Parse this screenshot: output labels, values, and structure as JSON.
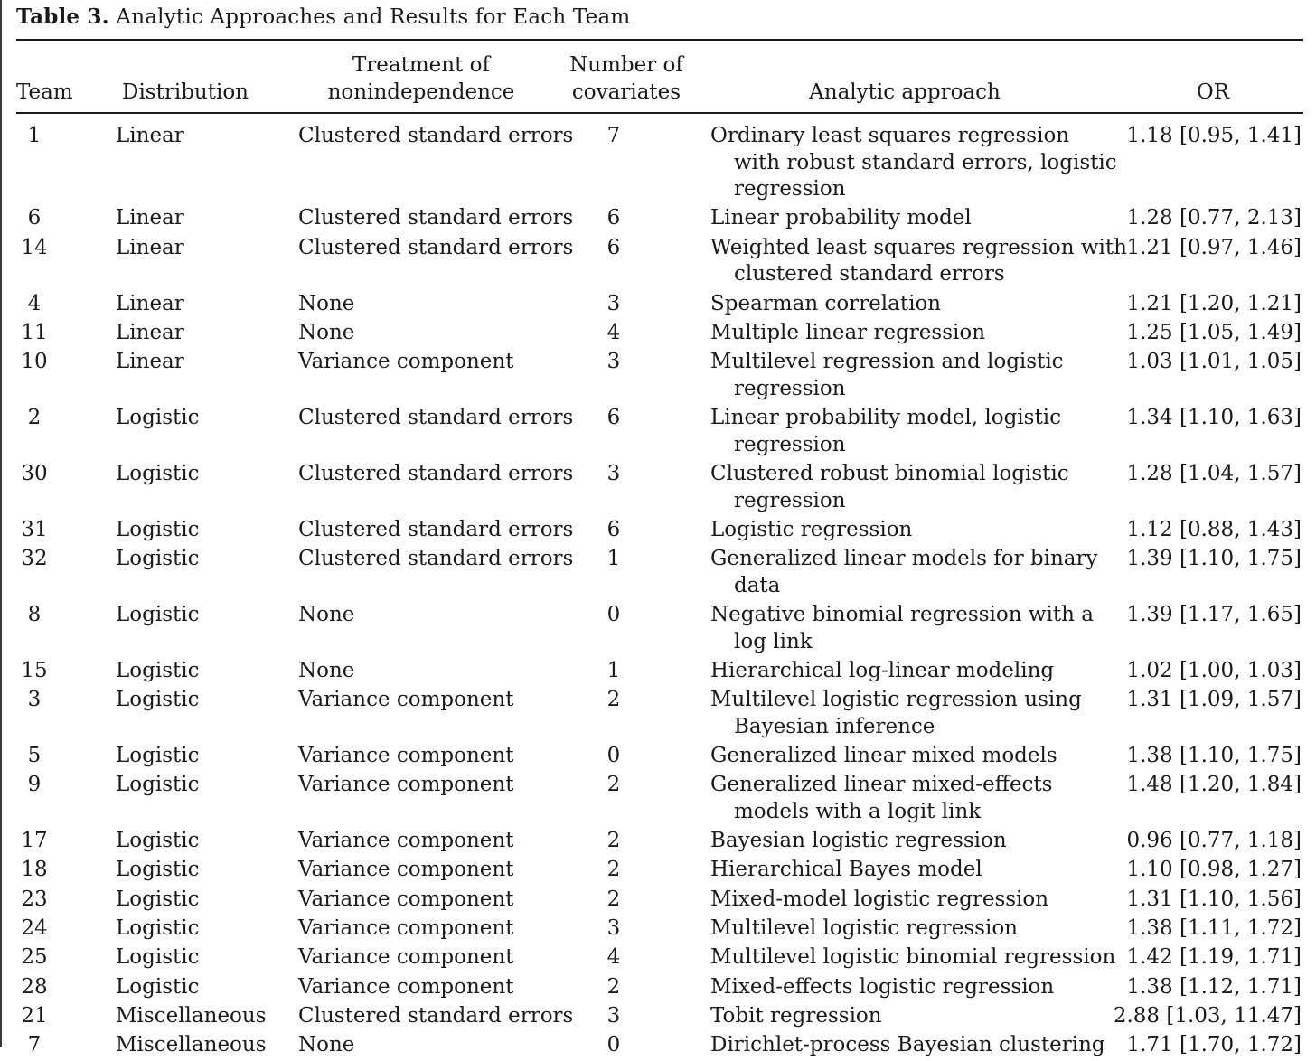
{
  "caption": {
    "label": "Table 3.",
    "title": "Analytic Approaches and Results for Each Team"
  },
  "columns": {
    "team": [
      "Team"
    ],
    "distribution": [
      "Distribution"
    ],
    "treatment": [
      "Treatment of",
      "nonindependence"
    ],
    "covariates": [
      "Number of",
      "covariates"
    ],
    "approach": [
      "Analytic approach"
    ],
    "or": [
      "OR"
    ]
  },
  "rows": [
    {
      "team": "1",
      "distribution": "Linear",
      "treatment": "Clustered standard errors",
      "covariates": "7",
      "approach": [
        "Ordinary least squares regression",
        "with robust standard errors, logistic",
        "regression"
      ],
      "or": "1.18 [0.95, 1.41]"
    },
    {
      "team": "6",
      "distribution": "Linear",
      "treatment": "Clustered standard errors",
      "covariates": "6",
      "approach": [
        "Linear probability model"
      ],
      "or": "1.28 [0.77, 2.13]"
    },
    {
      "team": "14",
      "distribution": "Linear",
      "treatment": "Clustered standard errors",
      "covariates": "6",
      "approach": [
        "Weighted least squares regression with",
        "clustered standard errors"
      ],
      "or": "1.21 [0.97, 1.46]"
    },
    {
      "team": "4",
      "distribution": "Linear",
      "treatment": "None",
      "covariates": "3",
      "approach": [
        "Spearman correlation"
      ],
      "or": "1.21 [1.20, 1.21]"
    },
    {
      "team": "11",
      "distribution": "Linear",
      "treatment": "None",
      "covariates": "4",
      "approach": [
        "Multiple linear regression"
      ],
      "or": "1.25 [1.05, 1.49]"
    },
    {
      "team": "10",
      "distribution": "Linear",
      "treatment": "Variance component",
      "covariates": "3",
      "approach": [
        "Multilevel regression and logistic",
        "regression"
      ],
      "or": "1.03 [1.01, 1.05]"
    },
    {
      "team": "2",
      "distribution": "Logistic",
      "treatment": "Clustered standard errors",
      "covariates": "6",
      "approach": [
        "Linear probability model, logistic",
        "regression"
      ],
      "or": "1.34 [1.10, 1.63]"
    },
    {
      "team": "30",
      "distribution": "Logistic",
      "treatment": "Clustered standard errors",
      "covariates": "3",
      "approach": [
        "Clustered robust binomial logistic",
        "regression"
      ],
      "or": "1.28 [1.04, 1.57]"
    },
    {
      "team": "31",
      "distribution": "Logistic",
      "treatment": "Clustered standard errors",
      "covariates": "6",
      "approach": [
        "Logistic regression"
      ],
      "or": "1.12 [0.88, 1.43]"
    },
    {
      "team": "32",
      "distribution": "Logistic",
      "treatment": "Clustered standard errors",
      "covariates": "1",
      "approach": [
        "Generalized linear models for binary",
        "data"
      ],
      "or": "1.39 [1.10, 1.75]"
    },
    {
      "team": "8",
      "distribution": "Logistic",
      "treatment": "None",
      "covariates": "0",
      "approach": [
        "Negative binomial regression with a",
        "log link"
      ],
      "or": "1.39 [1.17, 1.65]"
    },
    {
      "team": "15",
      "distribution": "Logistic",
      "treatment": "None",
      "covariates": "1",
      "approach": [
        "Hierarchical log-linear modeling"
      ],
      "or": "1.02 [1.00, 1.03]"
    },
    {
      "team": "3",
      "distribution": "Logistic",
      "treatment": "Variance component",
      "covariates": "2",
      "approach": [
        "Multilevel logistic regression using",
        "Bayesian inference"
      ],
      "or": "1.31 [1.09, 1.57]"
    },
    {
      "team": "5",
      "distribution": "Logistic",
      "treatment": "Variance component",
      "covariates": "0",
      "approach": [
        "Generalized linear mixed models"
      ],
      "or": "1.38 [1.10, 1.75]"
    },
    {
      "team": "9",
      "distribution": "Logistic",
      "treatment": "Variance component",
      "covariates": "2",
      "approach": [
        "Generalized linear mixed-effects",
        "models with a logit link"
      ],
      "or": "1.48 [1.20, 1.84]"
    },
    {
      "team": "17",
      "distribution": "Logistic",
      "treatment": "Variance component",
      "covariates": "2",
      "approach": [
        "Bayesian logistic regression"
      ],
      "or": "0.96 [0.77, 1.18]"
    },
    {
      "team": "18",
      "distribution": "Logistic",
      "treatment": "Variance component",
      "covariates": "2",
      "approach": [
        "Hierarchical Bayes model"
      ],
      "or": "1.10 [0.98, 1.27]"
    },
    {
      "team": "23",
      "distribution": "Logistic",
      "treatment": "Variance component",
      "covariates": "2",
      "approach": [
        "Mixed-model logistic regression"
      ],
      "or": "1.31 [1.10, 1.56]"
    },
    {
      "team": "24",
      "distribution": "Logistic",
      "treatment": "Variance component",
      "covariates": "3",
      "approach": [
        "Multilevel logistic regression"
      ],
      "or": "1.38 [1.11, 1.72]"
    },
    {
      "team": "25",
      "distribution": "Logistic",
      "treatment": "Variance component",
      "covariates": "4",
      "approach": [
        "Multilevel logistic binomial regression"
      ],
      "or": "1.42 [1.19, 1.71]"
    },
    {
      "team": "28",
      "distribution": "Logistic",
      "treatment": "Variance component",
      "covariates": "2",
      "approach": [
        "Mixed-effects logistic regression"
      ],
      "or": "1.38 [1.12, 1.71]"
    },
    {
      "team": "21",
      "distribution": "Miscellaneous",
      "treatment": "Clustered standard errors",
      "covariates": "3",
      "approach": [
        "Tobit regression"
      ],
      "or": "2.88 [1.03, 11.47]"
    },
    {
      "team": "7",
      "distribution": "Miscellaneous",
      "treatment": "None",
      "covariates": "0",
      "approach": [
        "Dirichlet-process Bayesian clustering"
      ],
      "or": "1.71 [1.70, 1.72]"
    }
  ]
}
